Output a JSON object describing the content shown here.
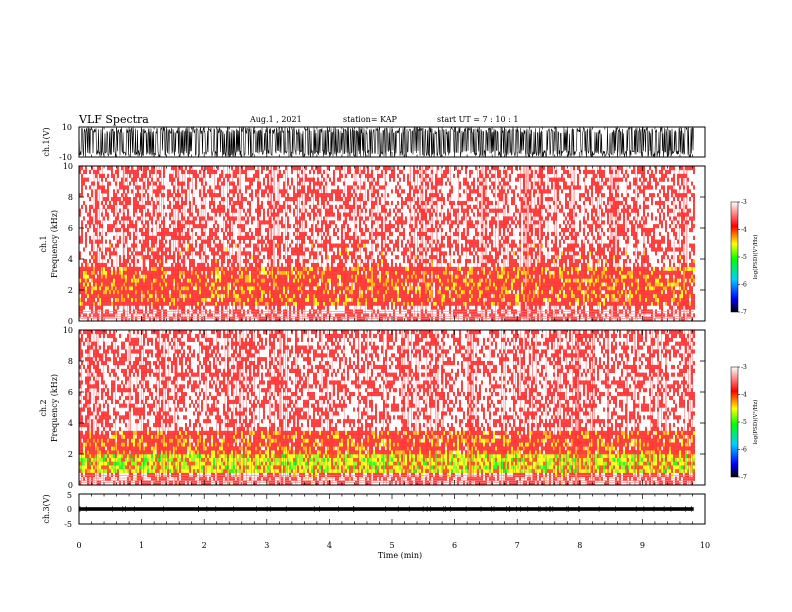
{
  "header": {
    "title": "VLF Spectra",
    "date": "Aug.1  , 2021",
    "station": "station= KAP",
    "start_ut": "start  UT  =   7 : 10 : 1"
  },
  "colors": {
    "background": "#ffffff",
    "signal": "#000000",
    "spectrogram_high": "#ff0000",
    "spectrogram_mid": "#ffff00",
    "spectrogram_low": "#00ff00"
  },
  "chart_data": [
    {
      "type": "line",
      "panel": "ch1-waveform",
      "ylabel": "ch.1(V)",
      "ylim": [
        -10,
        10
      ],
      "yticks": [
        10,
        -10
      ],
      "xlim": [
        0,
        10
      ],
      "x_extent_min": [
        0,
        9.82
      ],
      "description_values": "dense oscillating waveform filling nearly full +/-10 V range"
    },
    {
      "type": "heatmap",
      "panel": "ch1-spectrogram",
      "ylabel": "ch.1\nFrequency (kHz)",
      "ylim": [
        0,
        10
      ],
      "yticks": [
        0,
        2,
        4,
        6,
        8,
        10
      ],
      "xlim": [
        0,
        10
      ],
      "x_extent_min": [
        0,
        9.82
      ],
      "colorbar": {
        "label": "log(PSD)(V²/Hz)",
        "ticks": [
          -3,
          -4,
          -5,
          -6,
          -7
        ],
        "range": [
          -7,
          -3
        ]
      },
      "bands": [
        {
          "freq_khz": [
            0.0,
            1.0
          ],
          "level": -3.2
        },
        {
          "freq_khz": [
            1.0,
            3.5
          ],
          "level": -3.7
        },
        {
          "freq_khz": [
            3.5,
            5.0
          ],
          "level": -3.3
        },
        {
          "freq_khz": [
            5.0,
            10.0
          ],
          "level": -3.1
        }
      ]
    },
    {
      "type": "heatmap",
      "panel": "ch2-spectrogram",
      "ylabel": "ch.2\nFrequency (kHz)",
      "ylim": [
        0,
        10
      ],
      "yticks": [
        0,
        2,
        4,
        6,
        8,
        10
      ],
      "xlim": [
        0,
        10
      ],
      "x_extent_min": [
        0,
        9.82
      ],
      "colorbar": {
        "label": "log(PSD)(V²/Hz)",
        "ticks": [
          -3,
          -4,
          -5,
          -6,
          -7
        ],
        "range": [
          -7,
          -3
        ]
      },
      "bands": [
        {
          "freq_khz": [
            0.0,
            0.8
          ],
          "level": -3.3
        },
        {
          "freq_khz": [
            0.8,
            2.0
          ],
          "level": -4.4
        },
        {
          "freq_khz": [
            2.0,
            3.5
          ],
          "level": -3.7
        },
        {
          "freq_khz": [
            3.5,
            10.0
          ],
          "level": -3.1
        }
      ]
    },
    {
      "type": "line",
      "panel": "ch3-waveform",
      "ylabel": "ch.3(V)",
      "ylim": [
        -5,
        5
      ],
      "yticks": [
        5,
        0,
        -5
      ],
      "xlim": [
        0,
        10
      ],
      "x_extent_min": [
        0,
        9.82
      ],
      "mean_v": 0,
      "amplitude_v": 0.6
    }
  ],
  "x_axis": {
    "label": "Time  (min)",
    "ticks": [
      "0",
      "1",
      "2",
      "3",
      "4",
      "5",
      "6",
      "7",
      "8",
      "9",
      "10"
    ]
  }
}
